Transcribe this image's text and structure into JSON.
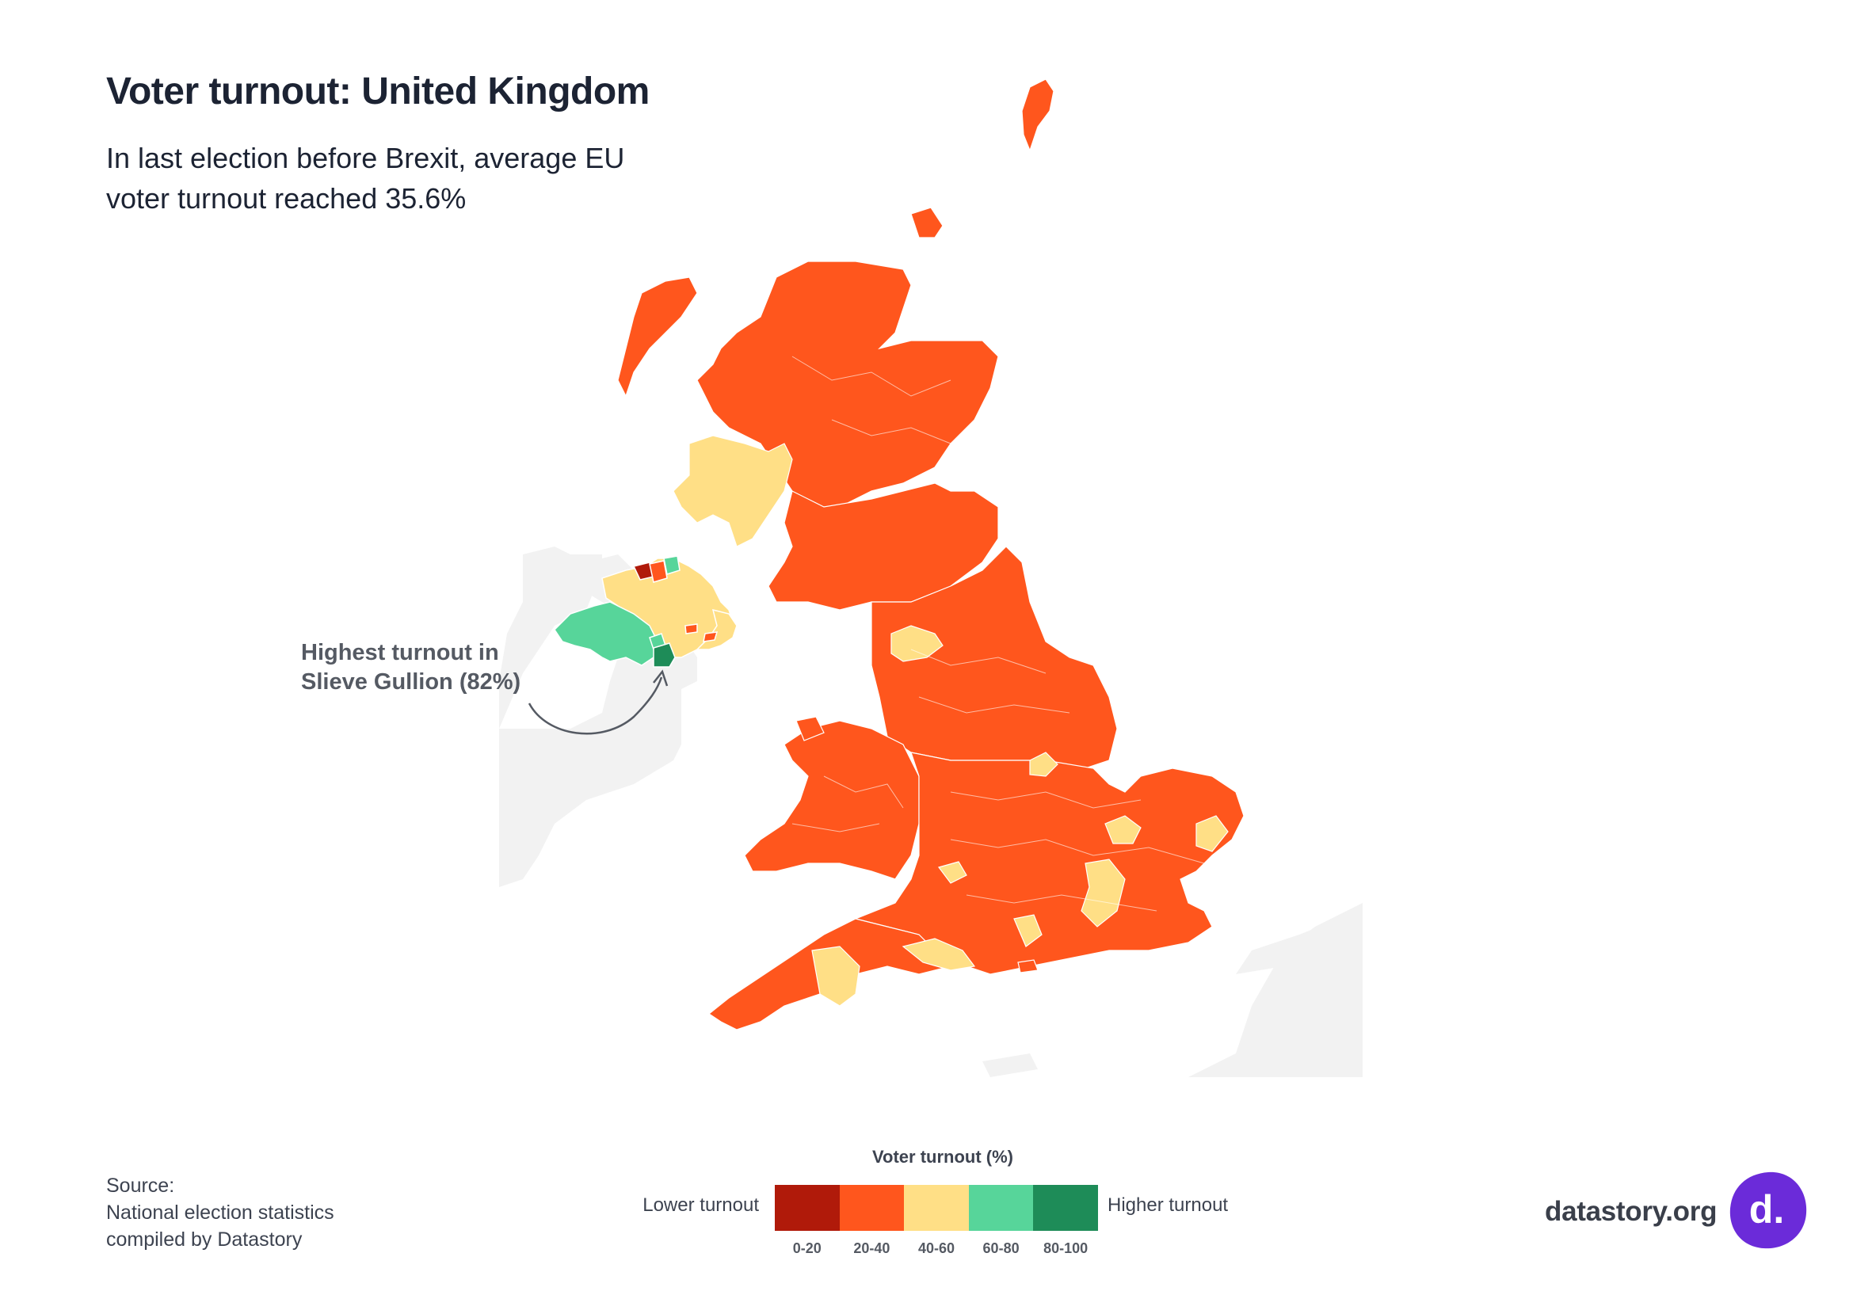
{
  "header": {
    "title": "Voter turnout: United Kingdom",
    "subtitle": "In last election before Brexit, average EU voter turnout reached 35.6%"
  },
  "annotation": {
    "line1": "Highest turnout in",
    "line2": "Slieve Gullion (82%)"
  },
  "legend": {
    "title": "Voter turnout (%)",
    "low_label": "Lower turnout",
    "high_label": "Higher turnout",
    "bins": [
      {
        "label": "0-20",
        "color": "#b01a0a"
      },
      {
        "label": "20-40",
        "color": "#ff561d"
      },
      {
        "label": "40-60",
        "color": "#ffdf86"
      },
      {
        "label": "60-80",
        "color": "#57d59a"
      },
      {
        "label": "80-100",
        "color": "#1e8c58"
      }
    ]
  },
  "source": {
    "line1": "Source:",
    "line2": "National election statistics",
    "line3": "compiled by Datastory"
  },
  "brand": {
    "name": "datastory.org",
    "logo_letter": "d.",
    "logo_color": "#6b2bd9"
  },
  "map": {
    "background_land": "#f3f3f3",
    "boundary_color": "#ffffff"
  }
}
